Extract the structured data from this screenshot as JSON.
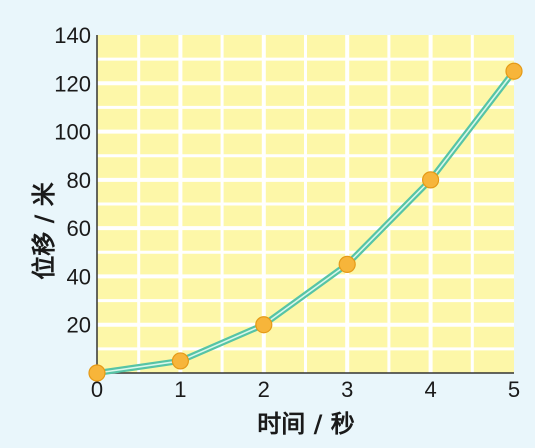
{
  "chart_data": {
    "type": "line",
    "x": [
      0,
      1,
      2,
      3,
      4,
      5
    ],
    "series": [
      {
        "values": [
          0,
          5,
          20,
          45,
          80,
          125
        ]
      }
    ],
    "xlabel": "时间 / 秒",
    "ylabel": "位移 / 米",
    "xlim": [
      0,
      5
    ],
    "ylim": [
      0,
      140
    ],
    "xticks": [
      "0",
      "1",
      "2",
      "3",
      "4",
      "5"
    ],
    "yticks": [
      "20",
      "40",
      "60",
      "80",
      "100",
      "120",
      "140"
    ],
    "grid": true,
    "colors": {
      "plot_background": "#fdf7a8",
      "gridline": "#ffffff",
      "line": "#56c4a6",
      "line_highlight": "#d9f7ea",
      "marker": "#f7b53a",
      "marker_edge": "#e59a17",
      "page_background": "#e9f6fb"
    }
  }
}
